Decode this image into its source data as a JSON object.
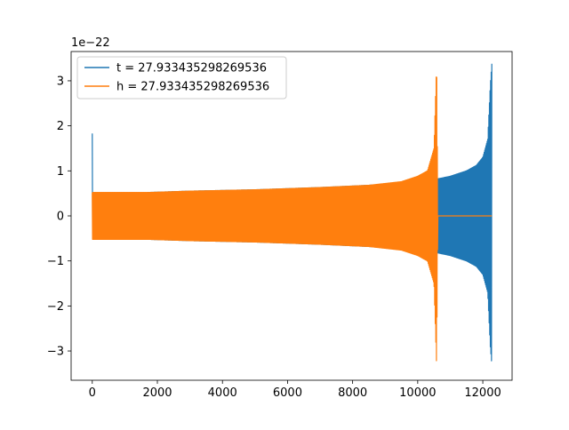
{
  "chart_data": {
    "type": "line",
    "title": "",
    "xlabel": "",
    "ylabel": "",
    "y_scale_label": "1e−22",
    "xlim": [
      -650,
      12900
    ],
    "ylim": [
      -3.65,
      3.65
    ],
    "x_ticks": [
      0,
      2000,
      4000,
      6000,
      8000,
      10000,
      12000
    ],
    "x_tick_labels": [
      "0",
      "2000",
      "4000",
      "6000",
      "8000",
      "10000",
      "12000"
    ],
    "y_ticks": [
      -3,
      -2,
      -1,
      0,
      1,
      2,
      3
    ],
    "y_tick_labels": [
      "−3",
      "−2",
      "−1",
      "0",
      "1",
      "2",
      "3"
    ],
    "grid": false,
    "legend_position": "top-left",
    "series": [
      {
        "name": "t = 27.933435298269536",
        "color": "#1f77b4",
        "x_range": [
          0,
          12280
        ],
        "envelope": {
          "x": [
            0,
            10,
            30,
            1700,
            3000,
            5000,
            7000,
            8500,
            10000,
            10600,
            11000,
            11500,
            11800,
            12000,
            12150,
            12230,
            12280
          ],
          "upper": [
            1.83,
            0.0,
            0.0,
            0.52,
            0.55,
            0.58,
            0.63,
            0.68,
            0.76,
            0.82,
            0.88,
            1.0,
            1.12,
            1.3,
            1.7,
            2.9,
            3.42
          ],
          "lower": [
            -2.7,
            0.0,
            0.0,
            -0.52,
            -0.55,
            -0.58,
            -0.63,
            -0.68,
            -0.76,
            -0.82,
            -0.88,
            -1.0,
            -1.12,
            -1.3,
            -1.7,
            -2.9,
            -3.33
          ]
        }
      },
      {
        "name": "h = 27.933435298269536",
        "color": "#ff7f0e",
        "x_range": [
          0,
          12280
        ],
        "envelope": {
          "x": [
            0,
            10,
            1700,
            3000,
            5000,
            7000,
            8500,
            9500,
            10000,
            10300,
            10500,
            10580,
            10620,
            10650,
            12280
          ],
          "upper": [
            0.52,
            0.52,
            0.52,
            0.55,
            0.58,
            0.63,
            0.68,
            0.76,
            0.88,
            1.0,
            1.5,
            3.42,
            0.0,
            0.0,
            0.0
          ],
          "lower": [
            -0.52,
            -0.52,
            -0.52,
            -0.55,
            -0.58,
            -0.63,
            -0.68,
            -0.76,
            -0.88,
            -1.0,
            -1.5,
            -3.33,
            0.0,
            0.0,
            0.0
          ]
        }
      }
    ]
  }
}
